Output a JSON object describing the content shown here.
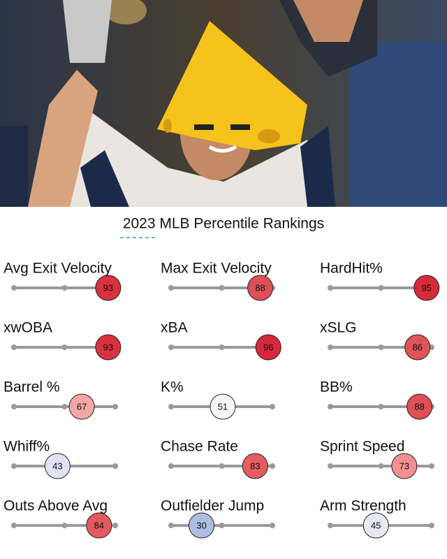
{
  "title": "2023 MLB Percentile Rankings",
  "rankings": [
    {
      "label": "Avg Exit Velocity",
      "value": 93,
      "color": "#d9323f"
    },
    {
      "label": "Max Exit Velocity",
      "value": 88,
      "color": "#de4f56"
    },
    {
      "label": "HardHit%",
      "value": 95,
      "color": "#d72b3a"
    },
    {
      "label": "xwOBA",
      "value": 93,
      "color": "#d9323f"
    },
    {
      "label": "xBA",
      "value": 96,
      "color": "#d6283a"
    },
    {
      "label": "xSLG",
      "value": 86,
      "color": "#df5359"
    },
    {
      "label": "Barrel %",
      "value": 67,
      "color": "#f3a7a5"
    },
    {
      "label": "K%",
      "value": 51,
      "color": "#f7f4f4"
    },
    {
      "label": "BB%",
      "value": 88,
      "color": "#de4f56"
    },
    {
      "label": "Whiff%",
      "value": 43,
      "color": "#dfe3f1"
    },
    {
      "label": "Chase Rate",
      "value": 83,
      "color": "#e35d61"
    },
    {
      "label": "Sprint Speed",
      "value": 73,
      "color": "#f09190"
    },
    {
      "label": "Outs Above Avg",
      "value": 84,
      "color": "#e25a5e"
    },
    {
      "label": "Outfielder Jump",
      "value": 30,
      "color": "#aebde2"
    },
    {
      "label": "Arm Strength",
      "value": 45,
      "color": "#e6e9f3"
    }
  ]
}
